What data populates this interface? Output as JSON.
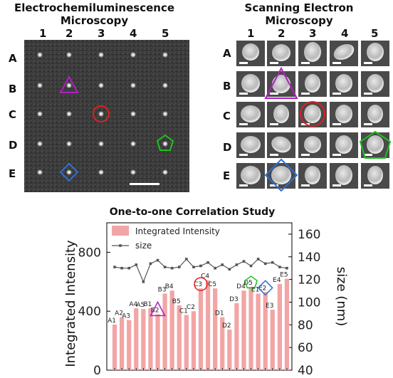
{
  "ecl": {
    "title": "Electrochemiluminescence Microscopy",
    "columns": [
      "1",
      "2",
      "3",
      "4",
      "5"
    ],
    "rows": [
      "A",
      "B",
      "C",
      "D",
      "E"
    ]
  },
  "sem": {
    "title": "Scanning Electron Microscopy",
    "columns": [
      "1",
      "2",
      "3",
      "4",
      "5"
    ],
    "rows": [
      "A",
      "B",
      "C",
      "D",
      "E"
    ]
  },
  "markers": [
    {
      "cell": "B2",
      "shape": "triangle",
      "color": "#b020c0"
    },
    {
      "cell": "C3",
      "shape": "circle",
      "color": "#e02020"
    },
    {
      "cell": "D5",
      "shape": "pentagon",
      "color": "#20c020"
    },
    {
      "cell": "E2",
      "shape": "diamond",
      "color": "#3070d0"
    }
  ],
  "chart_data": {
    "type": "bar",
    "title": "One-to-one Correlation Study",
    "ylabel": "Integrated Intensity",
    "y2label": "size (nm)",
    "ylim": [
      0,
      1000
    ],
    "y2lim": [
      40,
      170
    ],
    "yticks": [
      "0",
      "400",
      "800"
    ],
    "y2ticks": [
      "40",
      "60",
      "80",
      "100",
      "120",
      "140",
      "160"
    ],
    "legend": {
      "bars": "Integrated Intensity",
      "line": "size"
    },
    "bar_color": "#f2a5a5",
    "line_color": "#555555",
    "categories": [
      "A1",
      "A2",
      "A3",
      "A4",
      "A5",
      "B1",
      "B2",
      "B3",
      "B4",
      "B5",
      "C1",
      "C2",
      "C3",
      "C4",
      "C5",
      "D1",
      "D2",
      "D3",
      "D4",
      "D5",
      "E1",
      "E2",
      "E3",
      "E4",
      "E5"
    ],
    "values": [
      310,
      360,
      340,
      420,
      415,
      420,
      380,
      520,
      540,
      440,
      375,
      400,
      555,
      610,
      555,
      360,
      275,
      455,
      540,
      565,
      520,
      530,
      410,
      585,
      620
    ],
    "size": [
      131,
      130,
      130,
      133,
      118,
      134,
      137,
      131,
      130,
      131,
      138,
      131,
      132,
      135,
      130,
      133,
      129,
      133,
      136,
      132,
      138,
      134,
      135,
      131,
      130
    ]
  }
}
